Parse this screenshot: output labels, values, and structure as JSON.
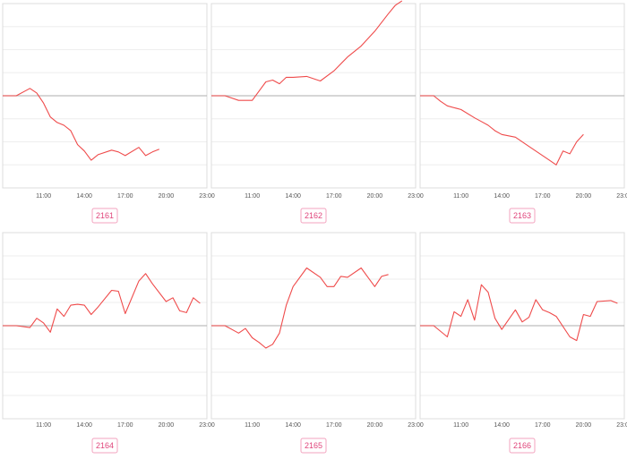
{
  "chart_data": [
    {
      "type": "line",
      "label": "2161",
      "x_ticks": [
        "11:00",
        "14:00",
        "17:00",
        "20:00",
        "23:00"
      ],
      "baseline": 0,
      "ylim": [
        -10,
        10
      ],
      "grid": true,
      "series": [
        {
          "x": [
            "08:00",
            "09:00",
            "10:00",
            "10:30",
            "11:00",
            "11:30",
            "12:00",
            "12:30",
            "13:00",
            "13:30",
            "14:00",
            "14:30",
            "15:00",
            "16:00",
            "16:30",
            "17:00",
            "18:00",
            "18:30",
            "19:00",
            "19:30"
          ],
          "values": [
            0,
            0,
            0.8,
            0.3,
            -0.8,
            -2.3,
            -2.9,
            -3.2,
            -3.8,
            -5.3,
            -6.0,
            -7.0,
            -6.4,
            -5.9,
            -6.1,
            -6.5,
            -5.6,
            -6.5,
            -6.1,
            -5.8
          ]
        }
      ]
    },
    {
      "type": "line",
      "label": "2162",
      "x_ticks": [
        "11:00",
        "14:00",
        "17:00",
        "20:00",
        "23:00"
      ],
      "baseline": 0,
      "ylim": [
        -10,
        10
      ],
      "grid": true,
      "series": [
        {
          "x": [
            "08:00",
            "09:00",
            "10:00",
            "11:00",
            "11:30",
            "12:00",
            "12:30",
            "13:00",
            "13:30",
            "14:00",
            "15:00",
            "16:00",
            "17:00",
            "18:00",
            "19:00",
            "20:00",
            "21:00",
            "21:30",
            "22:00"
          ],
          "values": [
            0,
            0,
            -0.5,
            -0.5,
            0.5,
            1.5,
            1.7,
            1.3,
            2.0,
            2.0,
            2.1,
            1.6,
            2.7,
            4.2,
            5.4,
            7.0,
            8.9,
            9.8,
            10.3
          ]
        }
      ]
    },
    {
      "type": "line",
      "label": "2163",
      "x_ticks": [
        "11:00",
        "14:00",
        "17:00",
        "20:00",
        "23:00"
      ],
      "baseline": 0,
      "ylim": [
        -10,
        10
      ],
      "grid": true,
      "series": [
        {
          "x": [
            "08:00",
            "09:00",
            "09:30",
            "10:00",
            "11:00",
            "12:00",
            "12:30",
            "13:00",
            "13:30",
            "14:00",
            "15:00",
            "16:00",
            "17:00",
            "17:30",
            "18:00",
            "18:30",
            "19:00",
            "19:30",
            "20:00"
          ],
          "values": [
            0,
            0,
            -0.6,
            -1.1,
            -1.5,
            -2.4,
            -2.8,
            -3.2,
            -3.8,
            -4.2,
            -4.5,
            -5.5,
            -6.5,
            -7.0,
            -7.5,
            -6.0,
            -6.3,
            -5.0,
            -4.2
          ]
        }
      ]
    },
    {
      "type": "line",
      "label": "2164",
      "x_ticks": [
        "11:00",
        "14:00",
        "17:00",
        "20:00",
        "23:00"
      ],
      "baseline": 0,
      "ylim": [
        -10,
        10
      ],
      "grid": true,
      "series": [
        {
          "x": [
            "08:00",
            "09:00",
            "10:00",
            "10:30",
            "11:00",
            "11:30",
            "12:00",
            "12:30",
            "13:00",
            "13:30",
            "14:00",
            "14:30",
            "15:00",
            "16:00",
            "16:30",
            "17:00",
            "18:00",
            "18:30",
            "19:00",
            "20:00",
            "20:30",
            "21:00",
            "21:30",
            "22:00",
            "22:30"
          ],
          "values": [
            0,
            0,
            -0.2,
            0.8,
            0.3,
            -0.7,
            1.8,
            1.0,
            2.2,
            2.3,
            2.2,
            1.2,
            2.0,
            3.8,
            3.7,
            1.3,
            4.8,
            5.6,
            4.5,
            2.6,
            3.0,
            1.6,
            1.4,
            3.0,
            2.4
          ]
        }
      ]
    },
    {
      "type": "line",
      "label": "2165",
      "x_ticks": [
        "11:00",
        "14:00",
        "17:00",
        "20:00",
        "23:00"
      ],
      "baseline": 0,
      "ylim": [
        -10,
        10
      ],
      "grid": true,
      "series": [
        {
          "x": [
            "08:00",
            "09:00",
            "10:00",
            "10:30",
            "11:00",
            "11:30",
            "12:00",
            "12:30",
            "13:00",
            "13:30",
            "14:00",
            "15:00",
            "16:00",
            "16:30",
            "17:00",
            "17:30",
            "18:00",
            "19:00",
            "19:30",
            "20:00",
            "20:30",
            "21:00"
          ],
          "values": [
            0,
            0,
            -0.8,
            -0.3,
            -1.3,
            -1.8,
            -2.4,
            -2.0,
            -0.8,
            2.2,
            4.2,
            6.2,
            5.2,
            4.2,
            4.2,
            5.3,
            5.2,
            6.2,
            5.2,
            4.2,
            5.3,
            5.5
          ]
        }
      ]
    },
    {
      "type": "line",
      "label": "2166",
      "x_ticks": [
        "11:00",
        "14:00",
        "17:00",
        "20:00",
        "23:00"
      ],
      "baseline": 0,
      "ylim": [
        -10,
        10
      ],
      "grid": true,
      "series": [
        {
          "x": [
            "08:00",
            "09:00",
            "10:00",
            "10:30",
            "11:00",
            "11:30",
            "12:00",
            "12:30",
            "13:00",
            "13:30",
            "14:00",
            "15:00",
            "15:30",
            "16:00",
            "16:30",
            "17:00",
            "17:30",
            "18:00",
            "19:00",
            "19:30",
            "20:00",
            "20:30",
            "21:00",
            "22:00",
            "22:30"
          ],
          "values": [
            0,
            0,
            -1.2,
            1.5,
            1.0,
            2.8,
            0.6,
            4.4,
            3.6,
            0.8,
            -0.4,
            1.7,
            0.4,
            0.9,
            2.8,
            1.7,
            1.4,
            1.0,
            -1.2,
            -1.6,
            1.2,
            1.0,
            2.6,
            2.7,
            2.4
          ]
        }
      ]
    }
  ]
}
